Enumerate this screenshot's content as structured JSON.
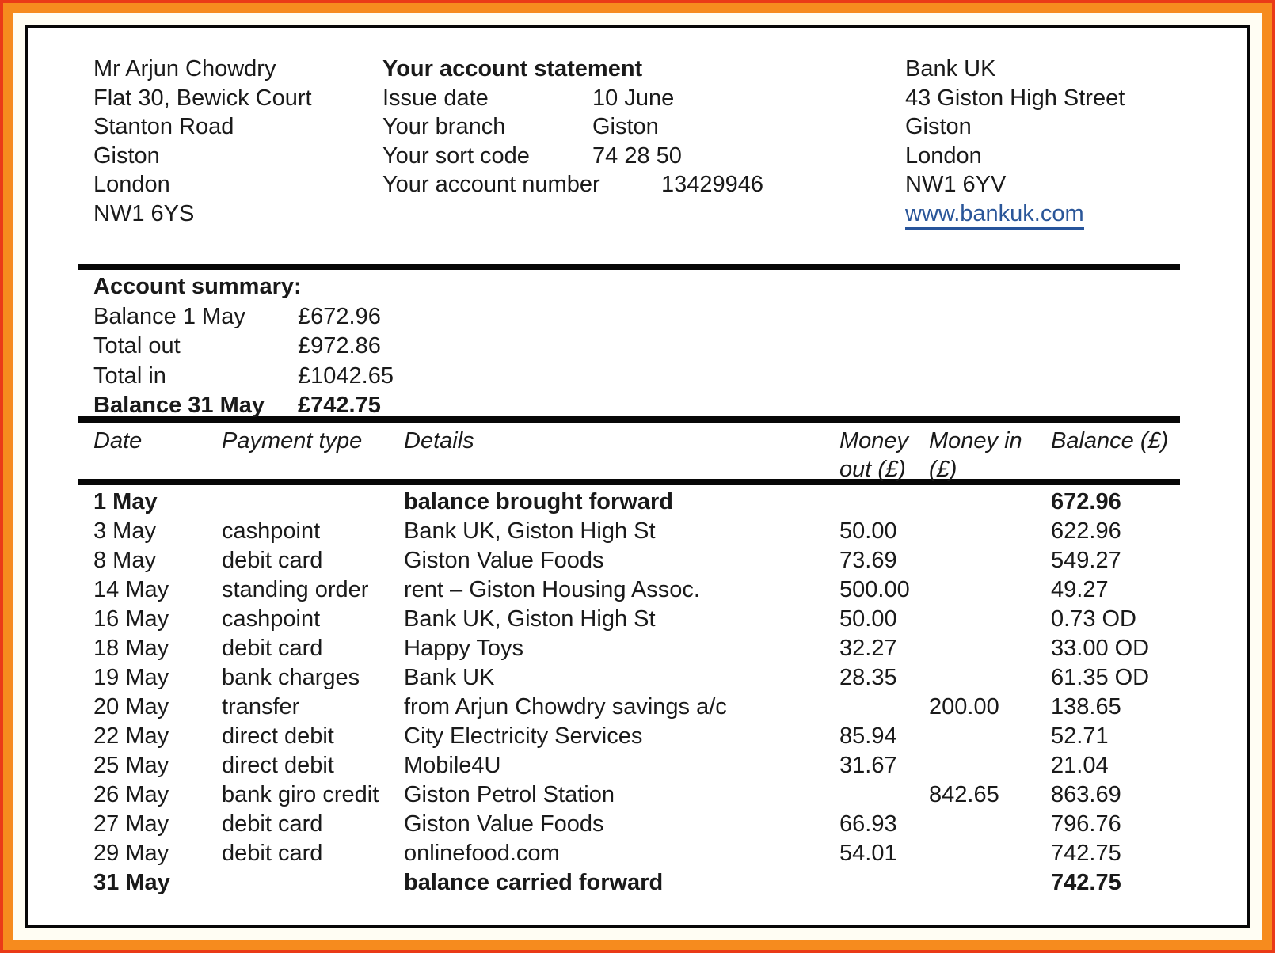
{
  "recipient": {
    "lines": [
      "Mr Arjun Chowdry",
      "Flat 30, Bewick Court",
      "Stanton Road",
      "Giston",
      "London",
      "NW1 6YS"
    ]
  },
  "statement_info": {
    "title": "Your account statement",
    "rows": [
      {
        "label": "Issue date",
        "value": "10 June",
        "wide": false
      },
      {
        "label": "Your branch",
        "value": "Giston",
        "wide": false
      },
      {
        "label": "Your sort code",
        "value": "74 28 50",
        "wide": false
      },
      {
        "label": "Your account number",
        "value": "13429946",
        "wide": true
      }
    ]
  },
  "bank": {
    "name": "Bank UK",
    "address_lines": [
      "43 Giston High Street",
      "Giston",
      "London",
      "NW1 6YV"
    ],
    "website": "www.bankuk.com"
  },
  "account_summary": {
    "heading": "Account summary:",
    "rows": [
      {
        "label": "Balance 1 May",
        "value": "£672.96",
        "bold": false
      },
      {
        "label": "Total out",
        "value": "£972.86",
        "bold": false
      },
      {
        "label": "Total in",
        "value": "£1042.65",
        "bold": false
      },
      {
        "label": "Balance 31 May",
        "value": "£742.75",
        "bold": true
      }
    ]
  },
  "transactions": {
    "columns": [
      "Date",
      "Payment type",
      "Details",
      "Money out (£)",
      "Money in (£)",
      "Balance (£)"
    ],
    "rows": [
      {
        "date": "1 May",
        "payment_type": "",
        "details": "balance brought forward",
        "money_out": "",
        "money_in": "",
        "balance": "672.96",
        "bold": true
      },
      {
        "date": "3 May",
        "payment_type": "cashpoint",
        "details": "Bank UK, Giston High St",
        "money_out": "50.00",
        "money_in": "",
        "balance": "622.96",
        "bold": false
      },
      {
        "date": "8 May",
        "payment_type": "debit card",
        "details": "Giston Value Foods",
        "money_out": "73.69",
        "money_in": "",
        "balance": "549.27",
        "bold": false
      },
      {
        "date": "14 May",
        "payment_type": "standing order",
        "details": "rent – Giston Housing Assoc.",
        "money_out": "500.00",
        "money_in": "",
        "balance": "49.27",
        "bold": false
      },
      {
        "date": "16 May",
        "payment_type": "cashpoint",
        "details": "Bank UK, Giston High St",
        "money_out": "50.00",
        "money_in": "",
        "balance": "0.73 OD",
        "bold": false
      },
      {
        "date": "18 May",
        "payment_type": "debit card",
        "details": "Happy Toys",
        "money_out": "32.27",
        "money_in": "",
        "balance": "33.00 OD",
        "bold": false
      },
      {
        "date": "19 May",
        "payment_type": "bank charges",
        "details": "Bank UK",
        "money_out": "28.35",
        "money_in": "",
        "balance": "61.35 OD",
        "bold": false
      },
      {
        "date": "20 May",
        "payment_type": "transfer",
        "details": "from Arjun Chowdry savings a/c",
        "money_out": "",
        "money_in": "200.00",
        "balance": "138.65",
        "bold": false
      },
      {
        "date": "22 May",
        "payment_type": "direct debit",
        "details": "City Electricity Services",
        "money_out": "85.94",
        "money_in": "",
        "balance": "52.71",
        "bold": false
      },
      {
        "date": "25 May",
        "payment_type": "direct debit",
        "details": "Mobile4U",
        "money_out": "31.67",
        "money_in": "",
        "balance": "21.04",
        "bold": false
      },
      {
        "date": "26 May",
        "payment_type": "bank giro credit",
        "details": "Giston Petrol Station",
        "money_out": "",
        "money_in": "842.65",
        "balance": "863.69",
        "bold": false
      },
      {
        "date": "27 May",
        "payment_type": "debit card",
        "details": "Giston Value Foods",
        "money_out": "66.93",
        "money_in": "",
        "balance": "796.76",
        "bold": false
      },
      {
        "date": "29 May",
        "payment_type": "debit card",
        "details": "onlinefood.com",
        "money_out": "54.01",
        "money_in": "",
        "balance": "742.75",
        "bold": false
      },
      {
        "date": "31 May",
        "payment_type": "",
        "details": "balance carried forward",
        "money_out": "",
        "money_in": "",
        "balance": "742.75",
        "bold": true
      }
    ]
  },
  "colors": {
    "outer_red": "#ea3a17",
    "border_orange": "#f68b1e",
    "inner_border_black": "#070707",
    "link_blue": "#2a5699",
    "text": "#1a1a1a"
  }
}
